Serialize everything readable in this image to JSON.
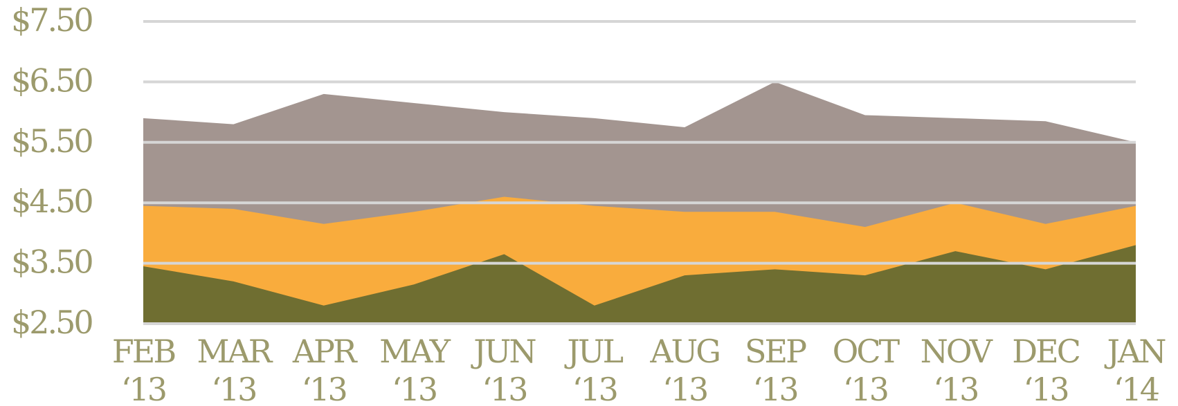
{
  "chart_data": {
    "type": "area",
    "categories": [
      [
        "FEB",
        "‘13"
      ],
      [
        "MAR",
        "‘13"
      ],
      [
        "APR",
        "‘13"
      ],
      [
        "MAY",
        "‘13"
      ],
      [
        "JUN",
        "‘13"
      ],
      [
        "JUL",
        "‘13"
      ],
      [
        "AUG",
        "‘13"
      ],
      [
        "SEP",
        "‘13"
      ],
      [
        "OCT",
        "‘13"
      ],
      [
        "NOV",
        "‘13"
      ],
      [
        "DEC",
        "‘13"
      ],
      [
        "JAN",
        "‘14"
      ]
    ],
    "series": [
      {
        "color": "#a39590",
        "values": [
          5.9,
          5.8,
          6.3,
          6.15,
          6.0,
          5.9,
          5.75,
          6.5,
          5.95,
          5.9,
          5.85,
          5.5
        ]
      },
      {
        "color": "#f9ac3d",
        "values": [
          4.45,
          4.4,
          4.15,
          4.35,
          4.6,
          4.45,
          4.35,
          4.35,
          4.1,
          4.5,
          4.15,
          4.45
        ]
      },
      {
        "color": "#6f6e31",
        "values": [
          3.45,
          3.2,
          2.8,
          3.15,
          3.65,
          2.8,
          3.3,
          3.4,
          3.3,
          3.7,
          3.4,
          3.8
        ]
      }
    ],
    "ylim": [
      2.5,
      7.5
    ],
    "yticks": [
      {
        "value": 2.5,
        "label": "$2.50"
      },
      {
        "value": 3.5,
        "label": "$3.50"
      },
      {
        "value": 4.5,
        "label": "$4.50"
      },
      {
        "value": 5.5,
        "label": "$5.50"
      },
      {
        "value": 6.5,
        "label": "$6.50"
      },
      {
        "value": 7.5,
        "label": "$7.50"
      }
    ],
    "grid": true
  }
}
